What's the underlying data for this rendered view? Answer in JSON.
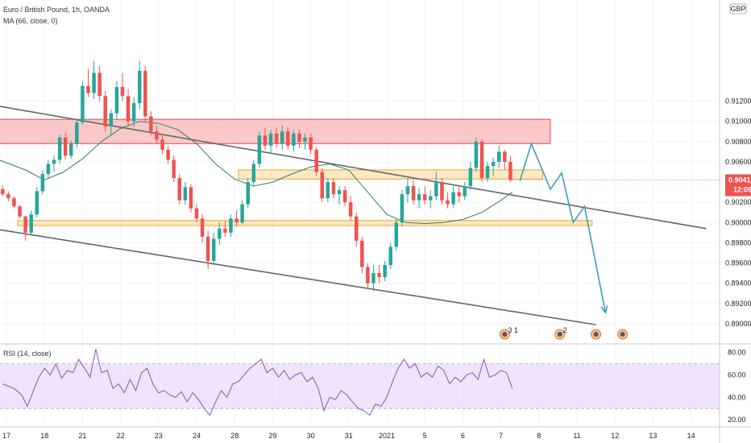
{
  "header": {
    "symbol_line": "Euro / British Pound, 1h, OANDA",
    "ma_line": "MA (66, close, 0)",
    "currency": "GBP",
    "rsi_label": "RSI (14, close)"
  },
  "price_box": {
    "price": "0.90415",
    "time": "12:09",
    "color": "#ef5350"
  },
  "colors": {
    "up": "#26a69a",
    "down": "#ef5350",
    "ma": "#2e7d5b",
    "rsi": "#7e57c2",
    "rsi_band": "#ead9fb",
    "resistance_zone": "#f8b5b5",
    "support_zone": "#fbe3b3",
    "trend_line": "#666666",
    "forecast": "#3a9fb3"
  },
  "chart_data": {
    "type": "candlestick",
    "price_axis": {
      "ylim": [
        0.888,
        0.922
      ],
      "ticks": [
        "0.91200",
        "0.91000",
        "0.90800",
        "0.90600",
        "0.90200",
        "0.90000",
        "0.89800",
        "0.89600",
        "0.89400",
        "0.89200",
        "0.89000"
      ],
      "tick_values": [
        0.912,
        0.91,
        0.908,
        0.906,
        0.902,
        0.9,
        0.898,
        0.896,
        0.894,
        0.892,
        0.89
      ]
    },
    "rsi_axis": {
      "ylim": [
        15,
        87
      ],
      "ticks": [
        "80.00",
        "60.00",
        "40.00",
        "20.00"
      ],
      "tick_values": [
        80,
        60,
        40,
        20
      ],
      "band": [
        30,
        70
      ]
    },
    "time_axis": {
      "labels": [
        "17",
        "18",
        "21",
        "22",
        "23",
        "24",
        "28",
        "29",
        "30",
        "31",
        "2021",
        "5",
        "6",
        "7",
        "8",
        "11",
        "12",
        "13",
        "14"
      ],
      "positions": [
        0,
        1,
        2,
        3,
        4,
        5,
        6,
        7,
        8,
        9,
        10,
        11,
        12,
        13,
        14,
        15,
        16,
        17,
        18
      ]
    },
    "zones": [
      {
        "name": "resistance",
        "ylo": 0.9078,
        "yhi": 0.9102,
        "x0": -0.2,
        "x1": 14.3
      },
      {
        "name": "support-upper",
        "ylo": 0.9043,
        "yhi": 0.9052,
        "x0": 6.1,
        "x1": 14.1
      },
      {
        "name": "support-lower",
        "ylo": 0.8997,
        "yhi": 0.9002,
        "x0": 0.3,
        "x1": 15.4
      }
    ],
    "trend_lines": [
      {
        "name": "upper",
        "x0": -0.2,
        "y0": 0.9115,
        "x1": 18.4,
        "y1": 0.8994
      },
      {
        "name": "lower",
        "x0": -0.2,
        "y0": 0.8993,
        "x1": 15.5,
        "y1": 0.8899
      }
    ],
    "forecast_path": [
      [
        13.5,
        0.9041
      ],
      [
        13.8,
        0.9078
      ],
      [
        14.3,
        0.9033
      ],
      [
        14.6,
        0.9049
      ],
      [
        14.9,
        0.9
      ],
      [
        15.2,
        0.9016
      ],
      [
        15.75,
        0.8911
      ]
    ],
    "candles": [
      [
        -0.1,
        0.9033,
        0.9037,
        0.9026,
        0.9028
      ],
      [
        0.05,
        0.9028,
        0.9031,
        0.9021,
        0.9024
      ],
      [
        0.2,
        0.9024,
        0.9026,
        0.9014,
        0.9016
      ],
      [
        0.35,
        0.9016,
        0.9017,
        0.9004,
        0.9006
      ],
      [
        0.5,
        0.9006,
        0.9007,
        0.8982,
        0.899
      ],
      [
        0.65,
        0.899,
        0.9012,
        0.8988,
        0.9008
      ],
      [
        0.8,
        0.9008,
        0.9035,
        0.9005,
        0.9031
      ],
      [
        0.95,
        0.9031,
        0.9052,
        0.9028,
        0.9048
      ],
      [
        1.1,
        0.9048,
        0.9062,
        0.9044,
        0.9058
      ],
      [
        1.25,
        0.9058,
        0.9066,
        0.905,
        0.9062
      ],
      [
        1.4,
        0.9062,
        0.9087,
        0.9058,
        0.9084
      ],
      [
        1.55,
        0.9084,
        0.9089,
        0.9062,
        0.9066
      ],
      [
        1.7,
        0.9066,
        0.9081,
        0.9063,
        0.9078
      ],
      [
        1.85,
        0.9078,
        0.9102,
        0.9074,
        0.9099
      ],
      [
        2.0,
        0.9099,
        0.914,
        0.9096,
        0.9135
      ],
      [
        2.15,
        0.9135,
        0.9152,
        0.9124,
        0.9128
      ],
      [
        2.3,
        0.9128,
        0.916,
        0.9122,
        0.9148
      ],
      [
        2.45,
        0.9148,
        0.9155,
        0.912,
        0.9125
      ],
      [
        2.6,
        0.9125,
        0.913,
        0.909,
        0.9095
      ],
      [
        2.75,
        0.9095,
        0.9112,
        0.9086,
        0.9108
      ],
      [
        2.9,
        0.9108,
        0.914,
        0.9102,
        0.9134
      ],
      [
        3.05,
        0.9134,
        0.9148,
        0.912,
        0.9125
      ],
      [
        3.2,
        0.9125,
        0.9132,
        0.9095,
        0.91
      ],
      [
        3.35,
        0.91,
        0.9124,
        0.9094,
        0.9118
      ],
      [
        3.5,
        0.9118,
        0.916,
        0.9112,
        0.915
      ],
      [
        3.65,
        0.915,
        0.9155,
        0.91,
        0.9105
      ],
      [
        3.8,
        0.9105,
        0.911,
        0.9086,
        0.909
      ],
      [
        3.95,
        0.909,
        0.9096,
        0.9078,
        0.9082
      ],
      [
        4.1,
        0.9082,
        0.9088,
        0.9068,
        0.9072
      ],
      [
        4.25,
        0.9072,
        0.9076,
        0.9058,
        0.9062
      ],
      [
        4.4,
        0.9062,
        0.9066,
        0.904,
        0.9044
      ],
      [
        4.55,
        0.9044,
        0.9048,
        0.9018,
        0.9022
      ],
      [
        4.7,
        0.9022,
        0.904,
        0.9018,
        0.9035
      ],
      [
        4.85,
        0.9035,
        0.9038,
        0.901,
        0.9014
      ],
      [
        5.0,
        0.9014,
        0.9018,
        0.9,
        0.9004
      ],
      [
        5.15,
        0.9004,
        0.9008,
        0.898,
        0.8986
      ],
      [
        5.3,
        0.8986,
        0.8992,
        0.8954,
        0.8962
      ],
      [
        5.45,
        0.8962,
        0.899,
        0.8958,
        0.8984
      ],
      [
        5.6,
        0.8984,
        0.9,
        0.8978,
        0.8994
      ],
      [
        5.75,
        0.8994,
        0.9002,
        0.8986,
        0.899
      ],
      [
        5.9,
        0.899,
        0.9008,
        0.8986,
        0.9004
      ],
      [
        6.05,
        0.9004,
        0.9012,
        0.8996,
        0.9
      ],
      [
        6.2,
        0.9,
        0.9022,
        0.8998,
        0.9018
      ],
      [
        6.35,
        0.9018,
        0.9044,
        0.9014,
        0.904
      ],
      [
        6.5,
        0.904,
        0.9062,
        0.9036,
        0.9058
      ],
      [
        6.65,
        0.9058,
        0.909,
        0.9054,
        0.9086
      ],
      [
        6.8,
        0.9086,
        0.9094,
        0.9072,
        0.9076
      ],
      [
        6.95,
        0.9076,
        0.9092,
        0.9068,
        0.9088
      ],
      [
        7.1,
        0.9088,
        0.9094,
        0.9074,
        0.9078
      ],
      [
        7.25,
        0.9078,
        0.9096,
        0.9072,
        0.909
      ],
      [
        7.4,
        0.909,
        0.9094,
        0.9072,
        0.9076
      ],
      [
        7.55,
        0.9076,
        0.9092,
        0.907,
        0.9088
      ],
      [
        7.7,
        0.9088,
        0.9092,
        0.9074,
        0.908
      ],
      [
        7.85,
        0.908,
        0.9088,
        0.9072,
        0.9084
      ],
      [
        8.0,
        0.9084,
        0.9088,
        0.9068,
        0.9072
      ],
      [
        8.15,
        0.9072,
        0.9074,
        0.9046,
        0.905
      ],
      [
        8.3,
        0.905,
        0.9054,
        0.902,
        0.9024
      ],
      [
        8.45,
        0.9024,
        0.9044,
        0.902,
        0.904
      ],
      [
        8.6,
        0.904,
        0.9044,
        0.9024,
        0.9028
      ],
      [
        8.75,
        0.9028,
        0.9036,
        0.9018,
        0.9032
      ],
      [
        8.9,
        0.9032,
        0.9036,
        0.9016,
        0.902
      ],
      [
        9.05,
        0.902,
        0.9026,
        0.9002,
        0.9006
      ],
      [
        9.2,
        0.9006,
        0.901,
        0.8976,
        0.8982
      ],
      [
        9.35,
        0.8982,
        0.8986,
        0.895,
        0.8956
      ],
      [
        9.5,
        0.8956,
        0.896,
        0.8934,
        0.894
      ],
      [
        9.65,
        0.894,
        0.8958,
        0.8932,
        0.895
      ],
      [
        9.8,
        0.895,
        0.8958,
        0.894,
        0.8946
      ],
      [
        9.95,
        0.8946,
        0.8962,
        0.8942,
        0.8958
      ],
      [
        10.1,
        0.8958,
        0.898,
        0.8954,
        0.8976
      ],
      [
        10.25,
        0.8976,
        0.9004,
        0.8972,
        0.9
      ],
      [
        10.4,
        0.9,
        0.9032,
        0.8996,
        0.9028
      ],
      [
        10.55,
        0.9028,
        0.9044,
        0.902,
        0.9036
      ],
      [
        10.7,
        0.9036,
        0.9042,
        0.9018,
        0.9022
      ],
      [
        10.85,
        0.9022,
        0.9034,
        0.9014,
        0.9028
      ],
      [
        11.0,
        0.9028,
        0.9036,
        0.9018,
        0.9022
      ],
      [
        11.15,
        0.9022,
        0.9032,
        0.9014,
        0.9026
      ],
      [
        11.3,
        0.9026,
        0.905,
        0.9022,
        0.904
      ],
      [
        11.45,
        0.904,
        0.9044,
        0.9018,
        0.9022
      ],
      [
        11.6,
        0.9022,
        0.903,
        0.9014,
        0.9018
      ],
      [
        11.75,
        0.9018,
        0.9036,
        0.9014,
        0.903
      ],
      [
        11.9,
        0.903,
        0.9036,
        0.902,
        0.9026
      ],
      [
        12.05,
        0.9026,
        0.904,
        0.9022,
        0.9036
      ],
      [
        12.2,
        0.9036,
        0.906,
        0.9032,
        0.9054
      ],
      [
        12.35,
        0.9054,
        0.9084,
        0.905,
        0.908
      ],
      [
        12.5,
        0.908,
        0.9082,
        0.904,
        0.9044
      ],
      [
        12.65,
        0.9044,
        0.906,
        0.904,
        0.9056
      ],
      [
        12.8,
        0.9056,
        0.9064,
        0.9046,
        0.906
      ],
      [
        12.95,
        0.906,
        0.9076,
        0.9054,
        0.907
      ],
      [
        13.1,
        0.907,
        0.9072,
        0.9052,
        0.906
      ],
      [
        13.25,
        0.906,
        0.9066,
        0.904,
        0.9042
      ]
    ],
    "ma": [
      [
        -0.2,
        0.9062
      ],
      [
        0.5,
        0.9052
      ],
      [
        1.0,
        0.9042
      ],
      [
        1.5,
        0.905
      ],
      [
        2.0,
        0.9063
      ],
      [
        2.5,
        0.908
      ],
      [
        3.0,
        0.9093
      ],
      [
        3.5,
        0.91
      ],
      [
        4.0,
        0.9098
      ],
      [
        4.5,
        0.9092
      ],
      [
        5.0,
        0.9078
      ],
      [
        5.5,
        0.9058
      ],
      [
        6.0,
        0.9043
      ],
      [
        6.5,
        0.9036
      ],
      [
        7.0,
        0.904
      ],
      [
        7.5,
        0.9048
      ],
      [
        8.0,
        0.9055
      ],
      [
        8.5,
        0.9058
      ],
      [
        9.0,
        0.9052
      ],
      [
        9.5,
        0.903
      ],
      [
        10.0,
        0.9008
      ],
      [
        10.5,
        0.9
      ],
      [
        11.0,
        0.8999
      ],
      [
        11.5,
        0.9
      ],
      [
        12.0,
        0.9003
      ],
      [
        12.5,
        0.901
      ],
      [
        13.0,
        0.9022
      ],
      [
        13.3,
        0.903
      ]
    ],
    "rsi": [
      [
        -0.1,
        52
      ],
      [
        0.2,
        48
      ],
      [
        0.4,
        42
      ],
      [
        0.55,
        32
      ],
      [
        0.7,
        45
      ],
      [
        0.85,
        58
      ],
      [
        1.0,
        66
      ],
      [
        1.15,
        60
      ],
      [
        1.3,
        70
      ],
      [
        1.45,
        57
      ],
      [
        1.6,
        64
      ],
      [
        1.75,
        62
      ],
      [
        1.9,
        74
      ],
      [
        2.05,
        66
      ],
      [
        2.2,
        58
      ],
      [
        2.35,
        83
      ],
      [
        2.5,
        62
      ],
      [
        2.65,
        64
      ],
      [
        2.8,
        48
      ],
      [
        2.95,
        52
      ],
      [
        3.1,
        44
      ],
      [
        3.25,
        56
      ],
      [
        3.4,
        46
      ],
      [
        3.55,
        62
      ],
      [
        3.7,
        66
      ],
      [
        3.85,
        52
      ],
      [
        4.0,
        44
      ],
      [
        4.15,
        46
      ],
      [
        4.3,
        42
      ],
      [
        4.45,
        40
      ],
      [
        4.6,
        45
      ],
      [
        4.75,
        36
      ],
      [
        4.9,
        44
      ],
      [
        5.05,
        38
      ],
      [
        5.2,
        30
      ],
      [
        5.35,
        24
      ],
      [
        5.5,
        36
      ],
      [
        5.65,
        46
      ],
      [
        5.8,
        40
      ],
      [
        5.95,
        52
      ],
      [
        6.1,
        54
      ],
      [
        6.25,
        60
      ],
      [
        6.4,
        66
      ],
      [
        6.55,
        70
      ],
      [
        6.7,
        74
      ],
      [
        6.85,
        62
      ],
      [
        7.0,
        66
      ],
      [
        7.15,
        58
      ],
      [
        7.3,
        64
      ],
      [
        7.45,
        56
      ],
      [
        7.6,
        60
      ],
      [
        7.75,
        62
      ],
      [
        7.9,
        54
      ],
      [
        8.05,
        58
      ],
      [
        8.2,
        48
      ],
      [
        8.35,
        28
      ],
      [
        8.5,
        40
      ],
      [
        8.65,
        38
      ],
      [
        8.8,
        46
      ],
      [
        8.95,
        42
      ],
      [
        9.1,
        36
      ],
      [
        9.25,
        30
      ],
      [
        9.4,
        28
      ],
      [
        9.55,
        24
      ],
      [
        9.7,
        34
      ],
      [
        9.85,
        32
      ],
      [
        10.0,
        40
      ],
      [
        10.15,
        54
      ],
      [
        10.3,
        66
      ],
      [
        10.45,
        74
      ],
      [
        10.6,
        66
      ],
      [
        10.75,
        70
      ],
      [
        10.9,
        58
      ],
      [
        11.05,
        62
      ],
      [
        11.2,
        58
      ],
      [
        11.35,
        68
      ],
      [
        11.5,
        64
      ],
      [
        11.65,
        52
      ],
      [
        11.8,
        58
      ],
      [
        11.95,
        54
      ],
      [
        12.1,
        60
      ],
      [
        12.25,
        62
      ],
      [
        12.4,
        56
      ],
      [
        12.55,
        74
      ],
      [
        12.7,
        58
      ],
      [
        12.85,
        60
      ],
      [
        13.0,
        64
      ],
      [
        13.15,
        62
      ],
      [
        13.3,
        48
      ]
    ],
    "event_markers": [
      {
        "x": 13.1,
        "icon": "flag-icon",
        "label": "3 1"
      },
      {
        "x": 14.55,
        "icon": "flag-icon",
        "label": "2"
      },
      {
        "x": 15.5,
        "icon": "dot-icon",
        "label": ""
      },
      {
        "x": 16.2,
        "icon": "globe-icon",
        "label": ""
      }
    ]
  }
}
